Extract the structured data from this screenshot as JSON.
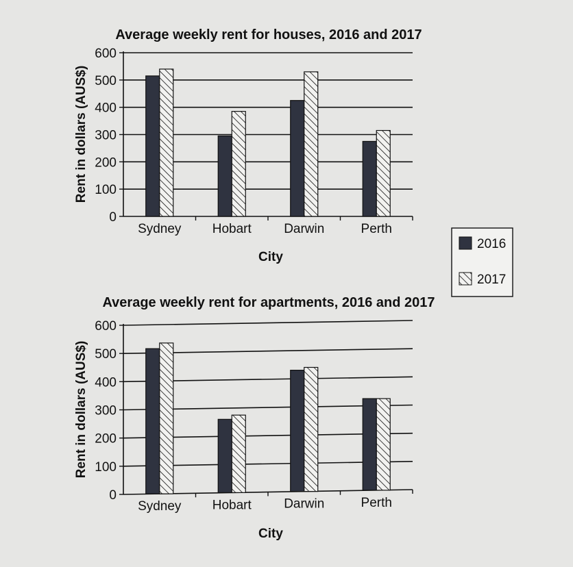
{
  "colors": {
    "background": "#e6e6e4",
    "bar_2016": "#2f3340",
    "bar_2017_fill": "#f2f2f0",
    "line": "#111111"
  },
  "legend": {
    "items": [
      {
        "label": "2016",
        "style": "solid"
      },
      {
        "label": "2017",
        "style": "hatched"
      }
    ]
  },
  "chart_data": [
    {
      "type": "bar",
      "title": "Average weekly rent for houses, 2016 and 2017",
      "xlabel": "City",
      "ylabel": "Rent in dollars (AUS$)",
      "ylim": [
        0,
        600
      ],
      "yticks": [
        0,
        100,
        200,
        300,
        400,
        500,
        600
      ],
      "grid": true,
      "categories": [
        "Sydney",
        "Hobart",
        "Darwin",
        "Perth"
      ],
      "series": [
        {
          "name": "2016",
          "values": [
            515,
            295,
            425,
            275
          ]
        },
        {
          "name": "2017",
          "values": [
            540,
            385,
            530,
            315
          ]
        }
      ]
    },
    {
      "type": "bar",
      "title": "Average weekly rent for apartments, 2016 and 2017",
      "xlabel": "City",
      "ylabel": "Rent in dollars (AUS$)",
      "ylim": [
        0,
        600
      ],
      "yticks": [
        0,
        100,
        200,
        300,
        400,
        500,
        600
      ],
      "grid": true,
      "categories": [
        "Sydney",
        "Hobart",
        "Darwin",
        "Perth"
      ],
      "series": [
        {
          "name": "2016",
          "values": [
            515,
            260,
            430,
            325
          ]
        },
        {
          "name": "2017",
          "values": [
            535,
            275,
            440,
            325
          ]
        }
      ]
    }
  ]
}
